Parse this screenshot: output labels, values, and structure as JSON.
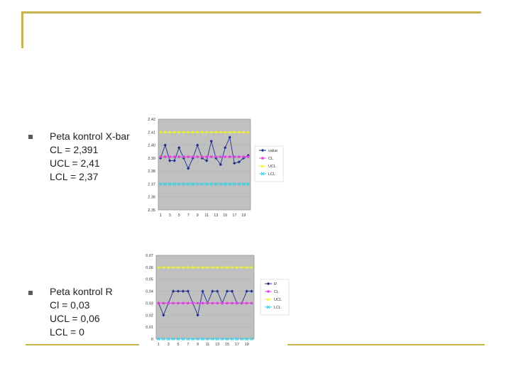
{
  "colors": {
    "frame": "#c8b44a",
    "plot_bg": "#c0c0c0",
    "value": "#1f2f8f",
    "cl": "#e040e0",
    "ucl": "#f2f230",
    "lcl": "#40d0e0"
  },
  "sections": [
    {
      "lines": [
        "Peta kontrol X-bar",
        "CL = 2,391",
        "UCL = 2,41",
        "LCL = 2,37"
      ]
    },
    {
      "lines": [
        "Peta kontrol R",
        "Cl = 0,03",
        "UCL = 0,06",
        "LCL = 0"
      ]
    }
  ],
  "chart_data": [
    {
      "type": "line",
      "x": [
        1,
        2,
        3,
        4,
        5,
        6,
        7,
        8,
        9,
        10,
        11,
        12,
        13,
        14,
        15,
        16,
        17,
        18,
        19,
        20
      ],
      "x_tick_labels": [
        "1",
        "3",
        "5",
        "7",
        "9",
        "11",
        "13",
        "15",
        "17",
        "19"
      ],
      "y_tick_labels": [
        "2.42",
        "2.41",
        "2.40",
        "2.39",
        "2.38",
        "2.37",
        "2.36",
        "2.35"
      ],
      "ylim": [
        2.35,
        2.42
      ],
      "series": [
        {
          "name": "value",
          "values": [
            2.39,
            2.4,
            2.388,
            2.388,
            2.398,
            2.39,
            2.382,
            2.39,
            2.4,
            2.39,
            2.388,
            2.403,
            2.39,
            2.385,
            2.398,
            2.406,
            2.386,
            2.387,
            2.39,
            2.392
          ]
        },
        {
          "name": "CL",
          "values": [
            2.391,
            2.391,
            2.391,
            2.391,
            2.391,
            2.391,
            2.391,
            2.391,
            2.391,
            2.391,
            2.391,
            2.391,
            2.391,
            2.391,
            2.391,
            2.391,
            2.391,
            2.391,
            2.391,
            2.391
          ]
        },
        {
          "name": "UCL",
          "values": [
            2.41,
            2.41,
            2.41,
            2.41,
            2.41,
            2.41,
            2.41,
            2.41,
            2.41,
            2.41,
            2.41,
            2.41,
            2.41,
            2.41,
            2.41,
            2.41,
            2.41,
            2.41,
            2.41,
            2.41
          ]
        },
        {
          "name": "LCL",
          "values": [
            2.37,
            2.37,
            2.37,
            2.37,
            2.37,
            2.37,
            2.37,
            2.37,
            2.37,
            2.37,
            2.37,
            2.37,
            2.37,
            2.37,
            2.37,
            2.37,
            2.37,
            2.37,
            2.37,
            2.37
          ]
        }
      ],
      "legend": "right"
    },
    {
      "type": "line",
      "x": [
        1,
        2,
        3,
        4,
        5,
        6,
        7,
        8,
        9,
        10,
        11,
        12,
        13,
        14,
        15,
        16,
        17,
        18,
        19,
        20
      ],
      "x_tick_labels": [
        "1",
        "3",
        "5",
        "7",
        "9",
        "11",
        "13",
        "15",
        "17",
        "19"
      ],
      "y_tick_labels": [
        "0.07",
        "0.06",
        "0.05",
        "0.04",
        "0.03",
        "0.02",
        "0.01",
        "0"
      ],
      "ylim": [
        0,
        0.07
      ],
      "series": [
        {
          "name": "R",
          "values": [
            0.03,
            0.02,
            0.03,
            0.04,
            0.04,
            0.04,
            0.04,
            0.03,
            0.02,
            0.04,
            0.03,
            0.04,
            0.04,
            0.03,
            0.04,
            0.04,
            0.03,
            0.03,
            0.04,
            0.04
          ]
        },
        {
          "name": "CL",
          "values": [
            0.03,
            0.03,
            0.03,
            0.03,
            0.03,
            0.03,
            0.03,
            0.03,
            0.03,
            0.03,
            0.03,
            0.03,
            0.03,
            0.03,
            0.03,
            0.03,
            0.03,
            0.03,
            0.03,
            0.03
          ]
        },
        {
          "name": "UCL",
          "values": [
            0.06,
            0.06,
            0.06,
            0.06,
            0.06,
            0.06,
            0.06,
            0.06,
            0.06,
            0.06,
            0.06,
            0.06,
            0.06,
            0.06,
            0.06,
            0.06,
            0.06,
            0.06,
            0.06,
            0.06
          ]
        },
        {
          "name": "LCL",
          "values": [
            0,
            0,
            0,
            0,
            0,
            0,
            0,
            0,
            0,
            0,
            0,
            0,
            0,
            0,
            0,
            0,
            0,
            0,
            0,
            0
          ]
        }
      ],
      "legend": "right"
    }
  ]
}
